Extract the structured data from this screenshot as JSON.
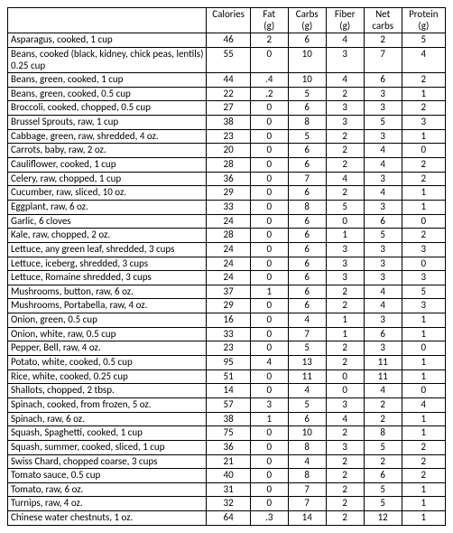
{
  "columns": [
    "",
    "Calories",
    "Fat (g)",
    "Carbs (g)",
    "Fiber (g)",
    "Net carbs",
    "Protein (g)"
  ],
  "rows": [
    [
      "Asparagus, cooked, 1 cup",
      "46",
      "2",
      "6",
      "4",
      "2",
      "5"
    ],
    [
      "Beans, cooked (black, kidney, chick peas, lentils) 0.25 cup",
      "55",
      "0",
      "10",
      "3",
      "7",
      "4"
    ],
    [
      "Beans, green, cooked, 1 cup",
      "44",
      ".4",
      "10",
      "4",
      "6",
      "2"
    ],
    [
      "Beans, green, cooked, 0.5 cup",
      "22",
      ".2",
      "5",
      "2",
      "3",
      "1"
    ],
    [
      "Broccoli, cooked, chopped, 0.5 cup",
      "27",
      "0",
      "6",
      "3",
      "3",
      "2"
    ],
    [
      "Brussel Sprouts, raw, 1 cup",
      "38",
      "0",
      "8",
      "3",
      "5",
      "3"
    ],
    [
      "Cabbage, green, raw, shredded, 4 oz.",
      "23",
      "0",
      "5",
      "2",
      "3",
      "1"
    ],
    [
      "Carrots, baby, raw, 2 oz.",
      "20",
      "0",
      "6",
      "2",
      "4",
      "0"
    ],
    [
      "Cauliflower, cooked, 1 cup",
      "28",
      "0",
      "6",
      "2",
      "4",
      "2"
    ],
    [
      "Celery, raw, chopped, 1 cup",
      "36",
      "0",
      "7",
      "4",
      "3",
      "2"
    ],
    [
      "Cucumber, raw, sliced, 10 oz.",
      "29",
      "0",
      "6",
      "2",
      "4",
      "1"
    ],
    [
      "Eggplant, raw, 6 oz.",
      "33",
      "0",
      "8",
      "5",
      "3",
      "1"
    ],
    [
      "Garlic, 6 cloves",
      "24",
      "0",
      "6",
      "0",
      "6",
      "0"
    ],
    [
      "Kale, raw, chopped, 2 oz.",
      "28",
      "0",
      "6",
      "1",
      "5",
      "2"
    ],
    [
      "Lettuce, any green leaf, shredded, 3 cups",
      "24",
      "0",
      "6",
      "3",
      "3",
      "3"
    ],
    [
      "Lettuce, iceberg, shredded, 3 cups",
      "24",
      "0",
      "6",
      "3",
      "3",
      "0"
    ],
    [
      "Lettuce, Romaine shredded, 3 cups",
      "24",
      "0",
      "6",
      "3",
      "3",
      "3"
    ],
    [
      "Mushrooms, button, raw, 6 oz.",
      "37",
      "1",
      "6",
      "2",
      "4",
      "5"
    ],
    [
      "Mushrooms, Portabella, raw, 4 oz.",
      "29",
      "0",
      "6",
      "2",
      "4",
      "3"
    ],
    [
      "Onion, green, 0.5 cup",
      "16",
      "0",
      "4",
      "1",
      "3",
      "1"
    ],
    [
      "Onion, white, raw, 0.5 cup",
      "33",
      "0",
      "7",
      "1",
      "6",
      "1"
    ],
    [
      "Pepper, Bell, raw, 4 oz.",
      "23",
      "0",
      "5",
      "2",
      "3",
      "0"
    ],
    [
      "Potato, white, cooked, 0.5 cup",
      "95",
      "4",
      "13",
      "2",
      "11",
      "1"
    ],
    [
      "Rice, white, cooked, 0.25 cup",
      "51",
      "0",
      "11",
      "0",
      "11",
      "1"
    ],
    [
      "Shallots, chopped, 2 tbsp.",
      "14",
      "0",
      "4",
      "0",
      "4",
      "0"
    ],
    [
      "Spinach, cooked, from frozen, 5 oz.",
      "57",
      "3",
      "5",
      "3",
      "2",
      "4"
    ],
    [
      "Spinach, raw, 6 oz.",
      "38",
      "1",
      "6",
      "4",
      "2",
      "1"
    ],
    [
      "Squash, Spaghetti, cooked, 1 cup",
      "75",
      "0",
      "10",
      "2",
      "8",
      "1"
    ],
    [
      "Squash, summer, cooked, sliced, 1 cup",
      "36",
      "0",
      "8",
      "3",
      "5",
      "2"
    ],
    [
      "Swiss Chard, chopped coarse, 3 cups",
      "21",
      "0",
      "4",
      "2",
      "2",
      "2"
    ],
    [
      "Tomato sauce, 0.5 cup",
      "40",
      "0",
      "8",
      "2",
      "6",
      "2"
    ],
    [
      "Tomato, raw, 6 oz.",
      "31",
      "0",
      "7",
      "2",
      "5",
      "1"
    ],
    [
      "Turnips, raw, 4 oz.",
      "32",
      "0",
      "7",
      "2",
      "5",
      "1"
    ],
    [
      "Chinese water chestnuts, 1 oz.",
      "64",
      ".3",
      "14",
      "2",
      "12",
      "1"
    ]
  ]
}
